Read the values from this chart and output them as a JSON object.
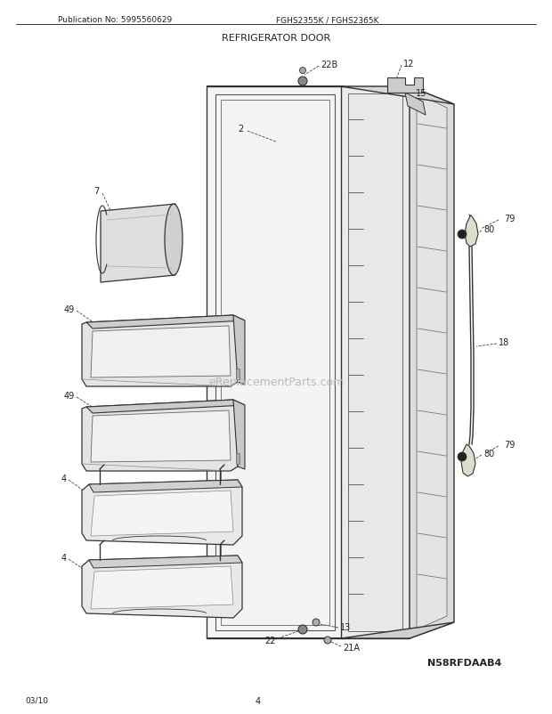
{
  "title": "REFRIGERATOR DOOR",
  "pub_no": "Publication No: 5995560629",
  "model": "FGHS2355K / FGHS2365K",
  "diagram_id": "N58RFDAAB4",
  "date": "03/10",
  "page": "4",
  "bg_color": "#ffffff",
  "lc": "#333333",
  "lbl": "#222222",
  "watermark": "eReplacementParts.com",
  "wm_color": "#bbbbbb"
}
